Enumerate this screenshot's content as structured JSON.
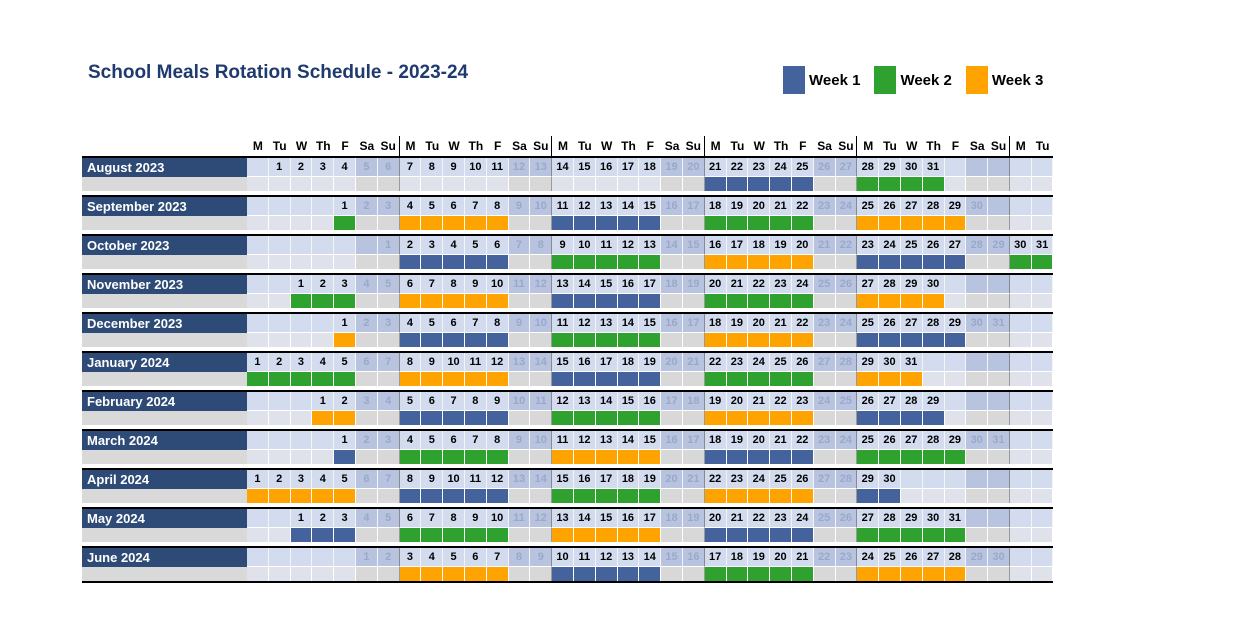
{
  "chart_data": {
    "type": "heatmap",
    "title": "School Meals Rotation Schedule - 2023-24",
    "legend": [
      {
        "label": "Week 1",
        "color": "#44639D"
      },
      {
        "label": "Week 2",
        "color": "#2EA12F"
      },
      {
        "label": "Week 3",
        "color": "#FFA300"
      }
    ],
    "weekday_header": [
      "M",
      "Tu",
      "W",
      "Th",
      "F",
      "Sa",
      "Su"
    ],
    "total_columns": 37,
    "colors": {
      "title_text": "#1F3A6E",
      "month_label_bg": "#2E4A77",
      "month_label_text": "#FFFFFF",
      "weekday_cell_bg": "#D3DCEF",
      "weekend_cell_bg": "#B7C3DF",
      "weekend_number_text": "#9AA9C9",
      "empty_band_weekday": "#DFE2EA",
      "empty_band_weekend": "#D8D8D8",
      "band_label_area": "#D9D9D9"
    },
    "months": [
      {
        "label": "August 2023",
        "first_day_column": 2,
        "num_days": 31,
        "weeks": [
          {
            "start": 21,
            "end": 25,
            "week": "Week 1"
          },
          {
            "start": 28,
            "end": 31,
            "week": "Week 2"
          }
        ]
      },
      {
        "label": "September 2023",
        "first_day_column": 5,
        "num_days": 30,
        "weeks": [
          {
            "start": 1,
            "end": 1,
            "week": "Week 2"
          },
          {
            "start": 4,
            "end": 8,
            "week": "Week 3"
          },
          {
            "start": 11,
            "end": 15,
            "week": "Week 1"
          },
          {
            "start": 18,
            "end": 22,
            "week": "Week 2"
          },
          {
            "start": 25,
            "end": 29,
            "week": "Week 3"
          }
        ]
      },
      {
        "label": "October 2023",
        "first_day_column": 7,
        "num_days": 31,
        "weeks": [
          {
            "start": 2,
            "end": 6,
            "week": "Week 1"
          },
          {
            "start": 9,
            "end": 13,
            "week": "Week 2"
          },
          {
            "start": 16,
            "end": 20,
            "week": "Week 3"
          },
          {
            "start": 23,
            "end": 27,
            "week": "Week 1"
          },
          {
            "start": 30,
            "end": 31,
            "week": "Week 2"
          }
        ]
      },
      {
        "label": "November 2023",
        "first_day_column": 3,
        "num_days": 30,
        "weeks": [
          {
            "start": 1,
            "end": 3,
            "week": "Week 2"
          },
          {
            "start": 6,
            "end": 10,
            "week": "Week 3"
          },
          {
            "start": 13,
            "end": 17,
            "week": "Week 1"
          },
          {
            "start": 20,
            "end": 24,
            "week": "Week 2"
          },
          {
            "start": 27,
            "end": 30,
            "week": "Week 3"
          }
        ]
      },
      {
        "label": "December 2023",
        "first_day_column": 5,
        "num_days": 31,
        "weeks": [
          {
            "start": 1,
            "end": 1,
            "week": "Week 3"
          },
          {
            "start": 4,
            "end": 8,
            "week": "Week 1"
          },
          {
            "start": 11,
            "end": 15,
            "week": "Week 2"
          },
          {
            "start": 18,
            "end": 22,
            "week": "Week 3"
          },
          {
            "start": 25,
            "end": 29,
            "week": "Week 1"
          }
        ]
      },
      {
        "label": "January 2024",
        "first_day_column": 1,
        "num_days": 31,
        "weeks": [
          {
            "start": 1,
            "end": 5,
            "week": "Week 2"
          },
          {
            "start": 8,
            "end": 12,
            "week": "Week 3"
          },
          {
            "start": 15,
            "end": 19,
            "week": "Week 1"
          },
          {
            "start": 22,
            "end": 26,
            "week": "Week 2"
          },
          {
            "start": 29,
            "end": 31,
            "week": "Week 3"
          }
        ]
      },
      {
        "label": "February 2024",
        "first_day_column": 4,
        "num_days": 29,
        "weeks": [
          {
            "start": 1,
            "end": 2,
            "week": "Week 3"
          },
          {
            "start": 5,
            "end": 9,
            "week": "Week 1"
          },
          {
            "start": 12,
            "end": 16,
            "week": "Week 2"
          },
          {
            "start": 19,
            "end": 23,
            "week": "Week 3"
          },
          {
            "start": 26,
            "end": 29,
            "week": "Week 1"
          }
        ]
      },
      {
        "label": "March 2024",
        "first_day_column": 5,
        "num_days": 31,
        "weeks": [
          {
            "start": 1,
            "end": 1,
            "week": "Week 1"
          },
          {
            "start": 4,
            "end": 8,
            "week": "Week 2"
          },
          {
            "start": 11,
            "end": 15,
            "week": "Week 3"
          },
          {
            "start": 18,
            "end": 22,
            "week": "Week 1"
          },
          {
            "start": 25,
            "end": 29,
            "week": "Week 2"
          }
        ]
      },
      {
        "label": "April 2024",
        "first_day_column": 1,
        "num_days": 30,
        "weeks": [
          {
            "start": 1,
            "end": 5,
            "week": "Week 3"
          },
          {
            "start": 8,
            "end": 12,
            "week": "Week 1"
          },
          {
            "start": 15,
            "end": 19,
            "week": "Week 2"
          },
          {
            "start": 22,
            "end": 26,
            "week": "Week 3"
          },
          {
            "start": 29,
            "end": 30,
            "week": "Week 1"
          }
        ]
      },
      {
        "label": "May 2024",
        "first_day_column": 3,
        "num_days": 31,
        "weeks": [
          {
            "start": 1,
            "end": 3,
            "week": "Week 1"
          },
          {
            "start": 6,
            "end": 10,
            "week": "Week 2"
          },
          {
            "start": 13,
            "end": 17,
            "week": "Week 3"
          },
          {
            "start": 20,
            "end": 24,
            "week": "Week 1"
          },
          {
            "start": 27,
            "end": 31,
            "week": "Week 2"
          }
        ]
      },
      {
        "label": "June 2024",
        "first_day_column": 6,
        "num_days": 30,
        "weeks": [
          {
            "start": 3,
            "end": 7,
            "week": "Week 3"
          },
          {
            "start": 10,
            "end": 14,
            "week": "Week 1"
          },
          {
            "start": 17,
            "end": 21,
            "week": "Week 2"
          },
          {
            "start": 24,
            "end": 28,
            "week": "Week 3"
          }
        ]
      }
    ]
  }
}
